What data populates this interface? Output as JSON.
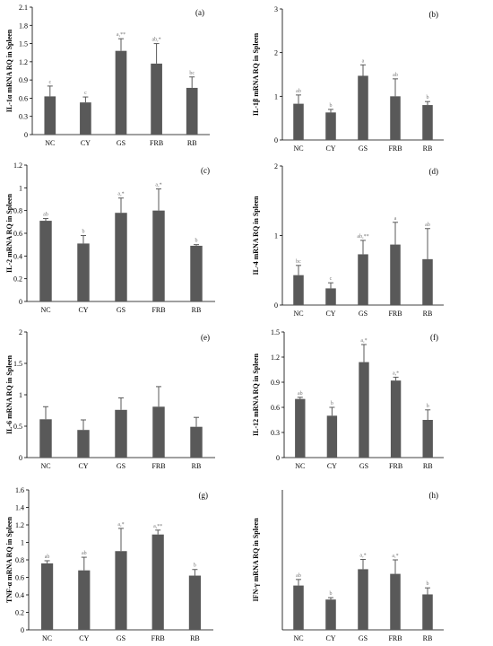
{
  "colors": {
    "bar": "#595959",
    "axis": "#000000",
    "sig": "#777777"
  },
  "chart_data": [
    {
      "type": "bar",
      "panel": "(a)",
      "ylabel": "IL-1α mRNA RQ in Spleen",
      "categories": [
        "NC",
        "CY",
        "GS",
        "FRB",
        "RB"
      ],
      "values": [
        0.63,
        0.53,
        1.38,
        1.17,
        0.77
      ],
      "errors": [
        0.17,
        0.09,
        0.2,
        0.33,
        0.18
      ],
      "labels": [
        "c",
        "c",
        "a,**",
        "ab,*",
        "bc"
      ],
      "ylim": [
        0,
        2.1
      ],
      "yticks": [
        "0",
        "0.3",
        "0.6",
        "0.9",
        "1.2",
        "1.5",
        "1.8",
        "2.1"
      ]
    },
    {
      "type": "bar",
      "panel": "(b)",
      "ylabel": "IL-1β mRNA RQ in Spleen",
      "categories": [
        "NC",
        "CY",
        "GS",
        "FRB",
        "RB"
      ],
      "values": [
        0.83,
        0.63,
        1.47,
        1.0,
        0.8
      ],
      "errors": [
        0.2,
        0.07,
        0.25,
        0.4,
        0.08
      ],
      "labels": [
        "ab",
        "b",
        "a",
        "ab",
        "b"
      ],
      "ylim": [
        0,
        3
      ],
      "yticks": [
        "0",
        "1",
        "2",
        "3"
      ]
    },
    {
      "type": "bar",
      "panel": "(c)",
      "ylabel": "IL-2 mRNA RQ in Spleen",
      "categories": [
        "NC",
        "CY",
        "GS",
        "FRB",
        "RB"
      ],
      "values": [
        0.71,
        0.51,
        0.78,
        0.8,
        0.49
      ],
      "errors": [
        0.02,
        0.07,
        0.13,
        0.19,
        0.01
      ],
      "labels": [
        "ab",
        "b",
        "a,*",
        "a,*",
        "b"
      ],
      "ylim": [
        0,
        1.2
      ],
      "yticks": [
        "0",
        "0.2",
        "0.4",
        "0.6",
        "0.8",
        "1",
        "1.2"
      ]
    },
    {
      "type": "bar",
      "panel": "(d)",
      "ylabel": "IL-4 mRNA RQ in Spleen",
      "categories": [
        "NC",
        "CY",
        "GS",
        "FRB",
        "RB"
      ],
      "values": [
        0.43,
        0.24,
        0.73,
        0.87,
        0.66
      ],
      "errors": [
        0.14,
        0.08,
        0.2,
        0.32,
        0.44
      ],
      "labels": [
        "bc",
        "c",
        "ab,**",
        "a",
        "ab"
      ],
      "ylim": [
        0,
        2
      ],
      "yticks": [
        "0",
        "1",
        "2"
      ]
    },
    {
      "type": "bar",
      "panel": "(e)",
      "ylabel": "IL-6 mRNA RQ in Spleen",
      "categories": [
        "NC",
        "CY",
        "GS",
        "FRB",
        "RB"
      ],
      "values": [
        0.61,
        0.44,
        0.76,
        0.81,
        0.49
      ],
      "errors": [
        0.2,
        0.16,
        0.19,
        0.32,
        0.15
      ],
      "labels": [
        "",
        "",
        "",
        "",
        ""
      ],
      "ylim": [
        0,
        2
      ],
      "yticks": [
        "0",
        "0.5",
        "1",
        "1.5",
        "2"
      ]
    },
    {
      "type": "bar",
      "panel": "(f)",
      "ylabel": "IL-12 mRNA RQ in Spleen",
      "categories": [
        "NC",
        "CY",
        "GS",
        "FRB",
        "RB"
      ],
      "values": [
        0.7,
        0.5,
        1.14,
        0.92,
        0.45
      ],
      "errors": [
        0.02,
        0.1,
        0.21,
        0.04,
        0.12
      ],
      "labels": [
        "ab",
        "b",
        "a,*",
        "a,*",
        "b"
      ],
      "ylim": [
        0,
        1.5
      ],
      "yticks": [
        "0",
        "0.3",
        "0.6",
        "0.9",
        "1.2",
        "1.5"
      ]
    },
    {
      "type": "bar",
      "panel": "(g)",
      "ylabel": "TNF-α mRNA RQ in Spleen",
      "categories": [
        "NC",
        "CY",
        "GS",
        "FRB",
        "RB"
      ],
      "values": [
        0.76,
        0.68,
        0.9,
        1.09,
        0.62
      ],
      "errors": [
        0.03,
        0.15,
        0.26,
        0.05,
        0.07
      ],
      "labels": [
        "ab",
        "ab",
        "a,*",
        "a,**",
        "b"
      ],
      "ylim": [
        0,
        1.6
      ],
      "yticks": [
        "0",
        "0.2",
        "0.4",
        "0.6",
        "0.8",
        "1",
        "1.2",
        "1.4",
        "1.6"
      ]
    },
    {
      "type": "bar",
      "panel": "(h)",
      "ylabel": "IFN-γ mRNA RQ in Spleen",
      "categories": [
        "NC",
        "CY",
        "GS",
        "FRB",
        "RB"
      ],
      "values": [
        0.95,
        0.65,
        1.3,
        1.2,
        0.76
      ],
      "errors": [
        0.13,
        0.04,
        0.21,
        0.3,
        0.14
      ],
      "labels": [
        "ab",
        "b",
        "a,*",
        "a,*",
        "b"
      ],
      "ylim": [
        0,
        3
      ],
      "yticks": []
    }
  ]
}
